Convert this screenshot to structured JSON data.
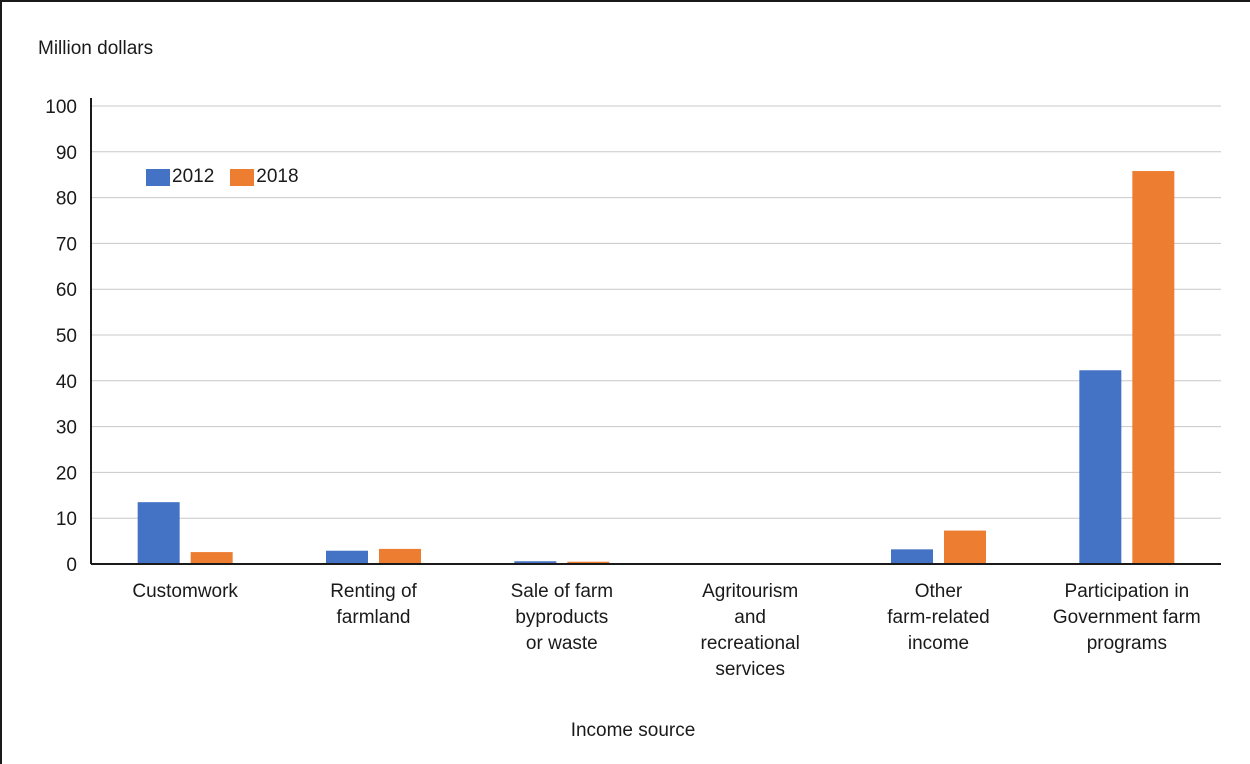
{
  "chart_data": {
    "type": "bar",
    "ylabel": "Million dollars",
    "xlabel": "Income source",
    "ylim": [
      0,
      100
    ],
    "yticks": [
      0,
      10,
      20,
      30,
      40,
      50,
      60,
      70,
      80,
      90,
      100
    ],
    "categories": [
      "Customwork",
      "Renting of\nfarmland",
      "Sale of farm\nbyproducts\nor waste",
      "Agritourism\nand\nrecreational\nservices",
      "Other\nfarm-related\nincome",
      "Participation in\nGovernment farm\nprograms"
    ],
    "series": [
      {
        "name": "2012",
        "color": "#4472c4",
        "values": [
          13.5,
          2.9,
          0.6,
          0.0,
          3.2,
          42.3
        ]
      },
      {
        "name": "2018",
        "color": "#ed7d31",
        "values": [
          2.6,
          3.3,
          0.5,
          0.0,
          7.3,
          85.8
        ]
      }
    ],
    "grid": true,
    "legend_position": "top-left"
  }
}
